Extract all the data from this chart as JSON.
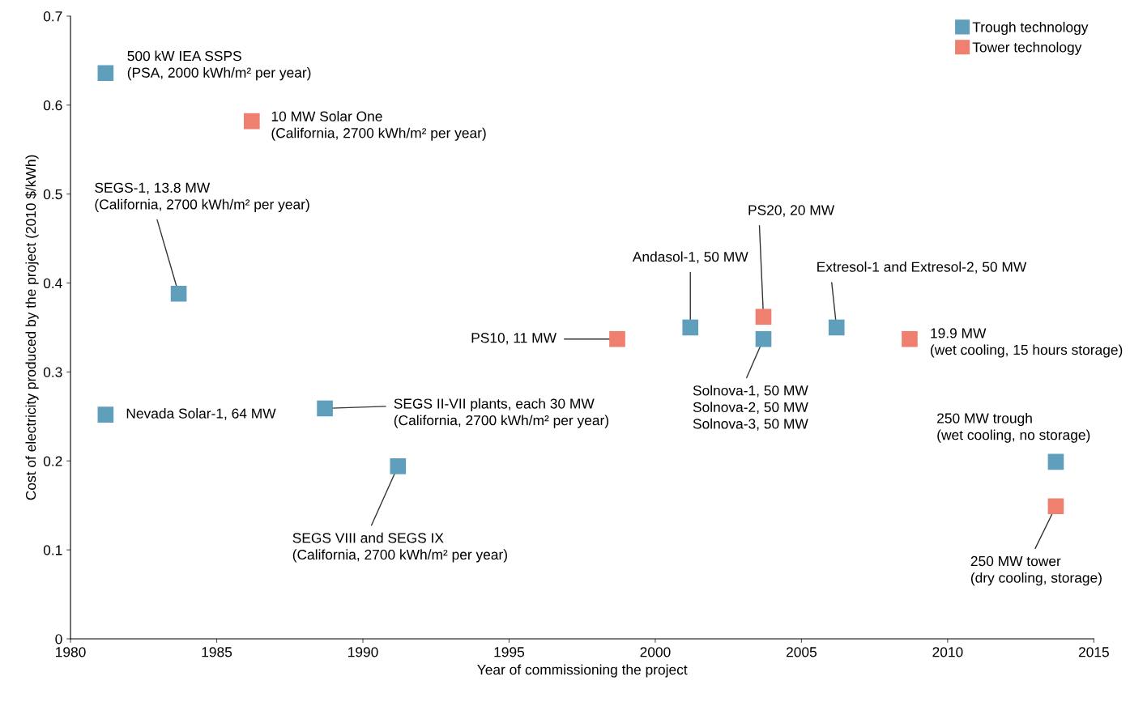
{
  "chart_data": {
    "type": "scatter",
    "xlabel": "Year of commissioning the project",
    "ylabel": "Cost of electricity produced by the project (2010 $/kWh)",
    "xlim": [
      1980,
      2015
    ],
    "xticks": [
      1980,
      1985,
      1990,
      1995,
      2000,
      2005,
      2010,
      2015
    ],
    "ylim": [
      0,
      0.7
    ],
    "yticks": [
      0,
      0.1,
      0.2,
      0.3,
      0.4,
      0.5,
      0.6,
      0.7
    ],
    "grid": false,
    "legend": "top right",
    "marker": "square",
    "series": [
      {
        "name": "Trough technology",
        "color": "#5f9fbb",
        "x": [
          1981.2,
          1983.7,
          1981.2,
          1988.7,
          1991.2,
          2001.2,
          2003.7,
          2006.2,
          2013.7
        ],
        "values": [
          0.636,
          0.388,
          0.252,
          0.259,
          0.194,
          0.35,
          0.337,
          0.35,
          0.199
        ]
      },
      {
        "name": "Tower technology",
        "color": "#ef7f6f",
        "x": [
          1986.2,
          1998.7,
          2003.7,
          2008.7,
          2013.7
        ],
        "values": [
          0.582,
          0.337,
          0.362,
          0.337,
          0.149
        ]
      }
    ],
    "annotations": [
      {
        "text": "500 kW IEA SSPS\n(PSA, 2000 kWh/m² per year)",
        "x": 1981.2,
        "y": 0.636
      },
      {
        "text": "10 MW Solar One\n(California, 2700 kWh/m² per year)",
        "x": 1986.2,
        "y": 0.582
      },
      {
        "text": "SEGS-1, 13.8 MW\n(California, 2700 kWh/m² per year)",
        "x": 1983.7,
        "y": 0.388
      },
      {
        "text": "Nevada Solar-1, 64 MW",
        "x": 1981.2,
        "y": 0.252
      },
      {
        "text": "SEGS II-VII plants, each 30 MW\n(California, 2700 kWh/m² per year)",
        "x": 1988.7,
        "y": 0.259
      },
      {
        "text": "SEGS VIII and SEGS IX\n(California, 2700 kWh/m² per year)",
        "x": 1991.2,
        "y": 0.194
      },
      {
        "text": "PS10, 11 MW",
        "x": 1998.7,
        "y": 0.337
      },
      {
        "text": "Andasol-1, 50 MW",
        "x": 2001.2,
        "y": 0.35
      },
      {
        "text": "PS20, 20 MW",
        "x": 2003.7,
        "y": 0.362
      },
      {
        "text": "Solnova-1, 50 MW\nSolnova-2, 50 MW\nSolnova-3, 50 MW",
        "x": 2003.7,
        "y": 0.337
      },
      {
        "text": "Extresol-1 and Extresol-2, 50 MW",
        "x": 2006.2,
        "y": 0.35
      },
      {
        "text": "19.9 MW\n(wet cooling, 15 hours storage)",
        "x": 2008.7,
        "y": 0.337
      },
      {
        "text": "250 MW trough\n(wet cooling, no storage)",
        "x": 2013.7,
        "y": 0.199
      },
      {
        "text": "250 MW tower\n(dry cooling, storage)",
        "x": 2013.7,
        "y": 0.149
      }
    ]
  }
}
